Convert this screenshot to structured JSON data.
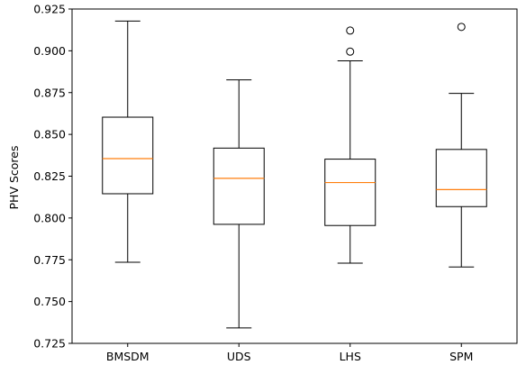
{
  "chart_data": {
    "type": "box",
    "title": "",
    "xlabel": "",
    "ylabel": "PHV Scores",
    "ylim": [
      0.725,
      0.925
    ],
    "yticks": [
      0.725,
      0.75,
      0.775,
      0.8,
      0.825,
      0.85,
      0.875,
      0.9,
      0.925
    ],
    "ytick_labels": [
      "0.725",
      "0.750",
      "0.775",
      "0.800",
      "0.825",
      "0.850",
      "0.875",
      "0.900",
      "0.925"
    ],
    "grid": false,
    "categories": [
      "BMSDM",
      "UDS",
      "LHS",
      "SPM"
    ],
    "boxes": [
      {
        "label": "BMSDM",
        "whisker_low": 0.7735,
        "q1": 0.8145,
        "median": 0.8355,
        "q3": 0.8603,
        "whisker_high": 0.9178,
        "outliers": []
      },
      {
        "label": "UDS",
        "whisker_low": 0.7342,
        "q1": 0.7962,
        "median": 0.8237,
        "q3": 0.8418,
        "whisker_high": 0.8826,
        "outliers": []
      },
      {
        "label": "LHS",
        "whisker_low": 0.773,
        "q1": 0.7955,
        "median": 0.8212,
        "q3": 0.8352,
        "whisker_high": 0.894,
        "outliers": [
          0.8995,
          0.9121
        ]
      },
      {
        "label": "SPM",
        "whisker_low": 0.7707,
        "q1": 0.8068,
        "median": 0.817,
        "q3": 0.841,
        "whisker_high": 0.8745,
        "outliers": [
          0.9143
        ]
      }
    ],
    "colors": {
      "box": "#000000",
      "median": "#ff7f0e",
      "outlier": "#000000"
    }
  }
}
